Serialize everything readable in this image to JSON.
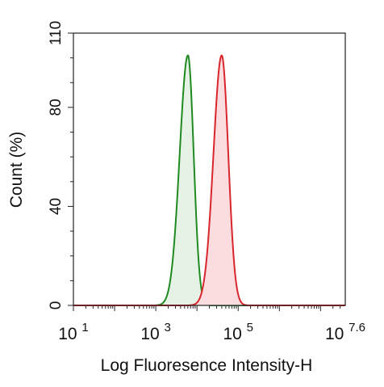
{
  "chart_data": {
    "type": "line",
    "title": "",
    "xlabel": "Log Fluoresence Intensity-H",
    "ylabel": "Count  (%)",
    "x_scale": "log",
    "xlim_log10": [
      1,
      7.6
    ],
    "ylim": [
      0,
      110
    ],
    "x_ticks": [
      {
        "exp": 1,
        "base": "10",
        "sup": "1"
      },
      {
        "exp": 3,
        "base": "10",
        "sup": "3"
      },
      {
        "exp": 5,
        "base": "10",
        "sup": "5"
      },
      {
        "exp": 7.6,
        "base": "10",
        "sup": "7.6"
      }
    ],
    "y_ticks": [
      "0",
      "40",
      "80",
      "110"
    ],
    "grid": false,
    "series": [
      {
        "color": "#1f8a1f",
        "fill": "#e6f2e6",
        "peak_x_log10": 3.78,
        "peak_y": 101,
        "width_left": 0.2,
        "width_right": 0.14
      },
      {
        "color": "#d9252c",
        "fill": "#fbdde0",
        "peak_x_log10": 4.6,
        "peak_y": 101,
        "width_left": 0.2,
        "width_right": 0.16
      }
    ]
  }
}
